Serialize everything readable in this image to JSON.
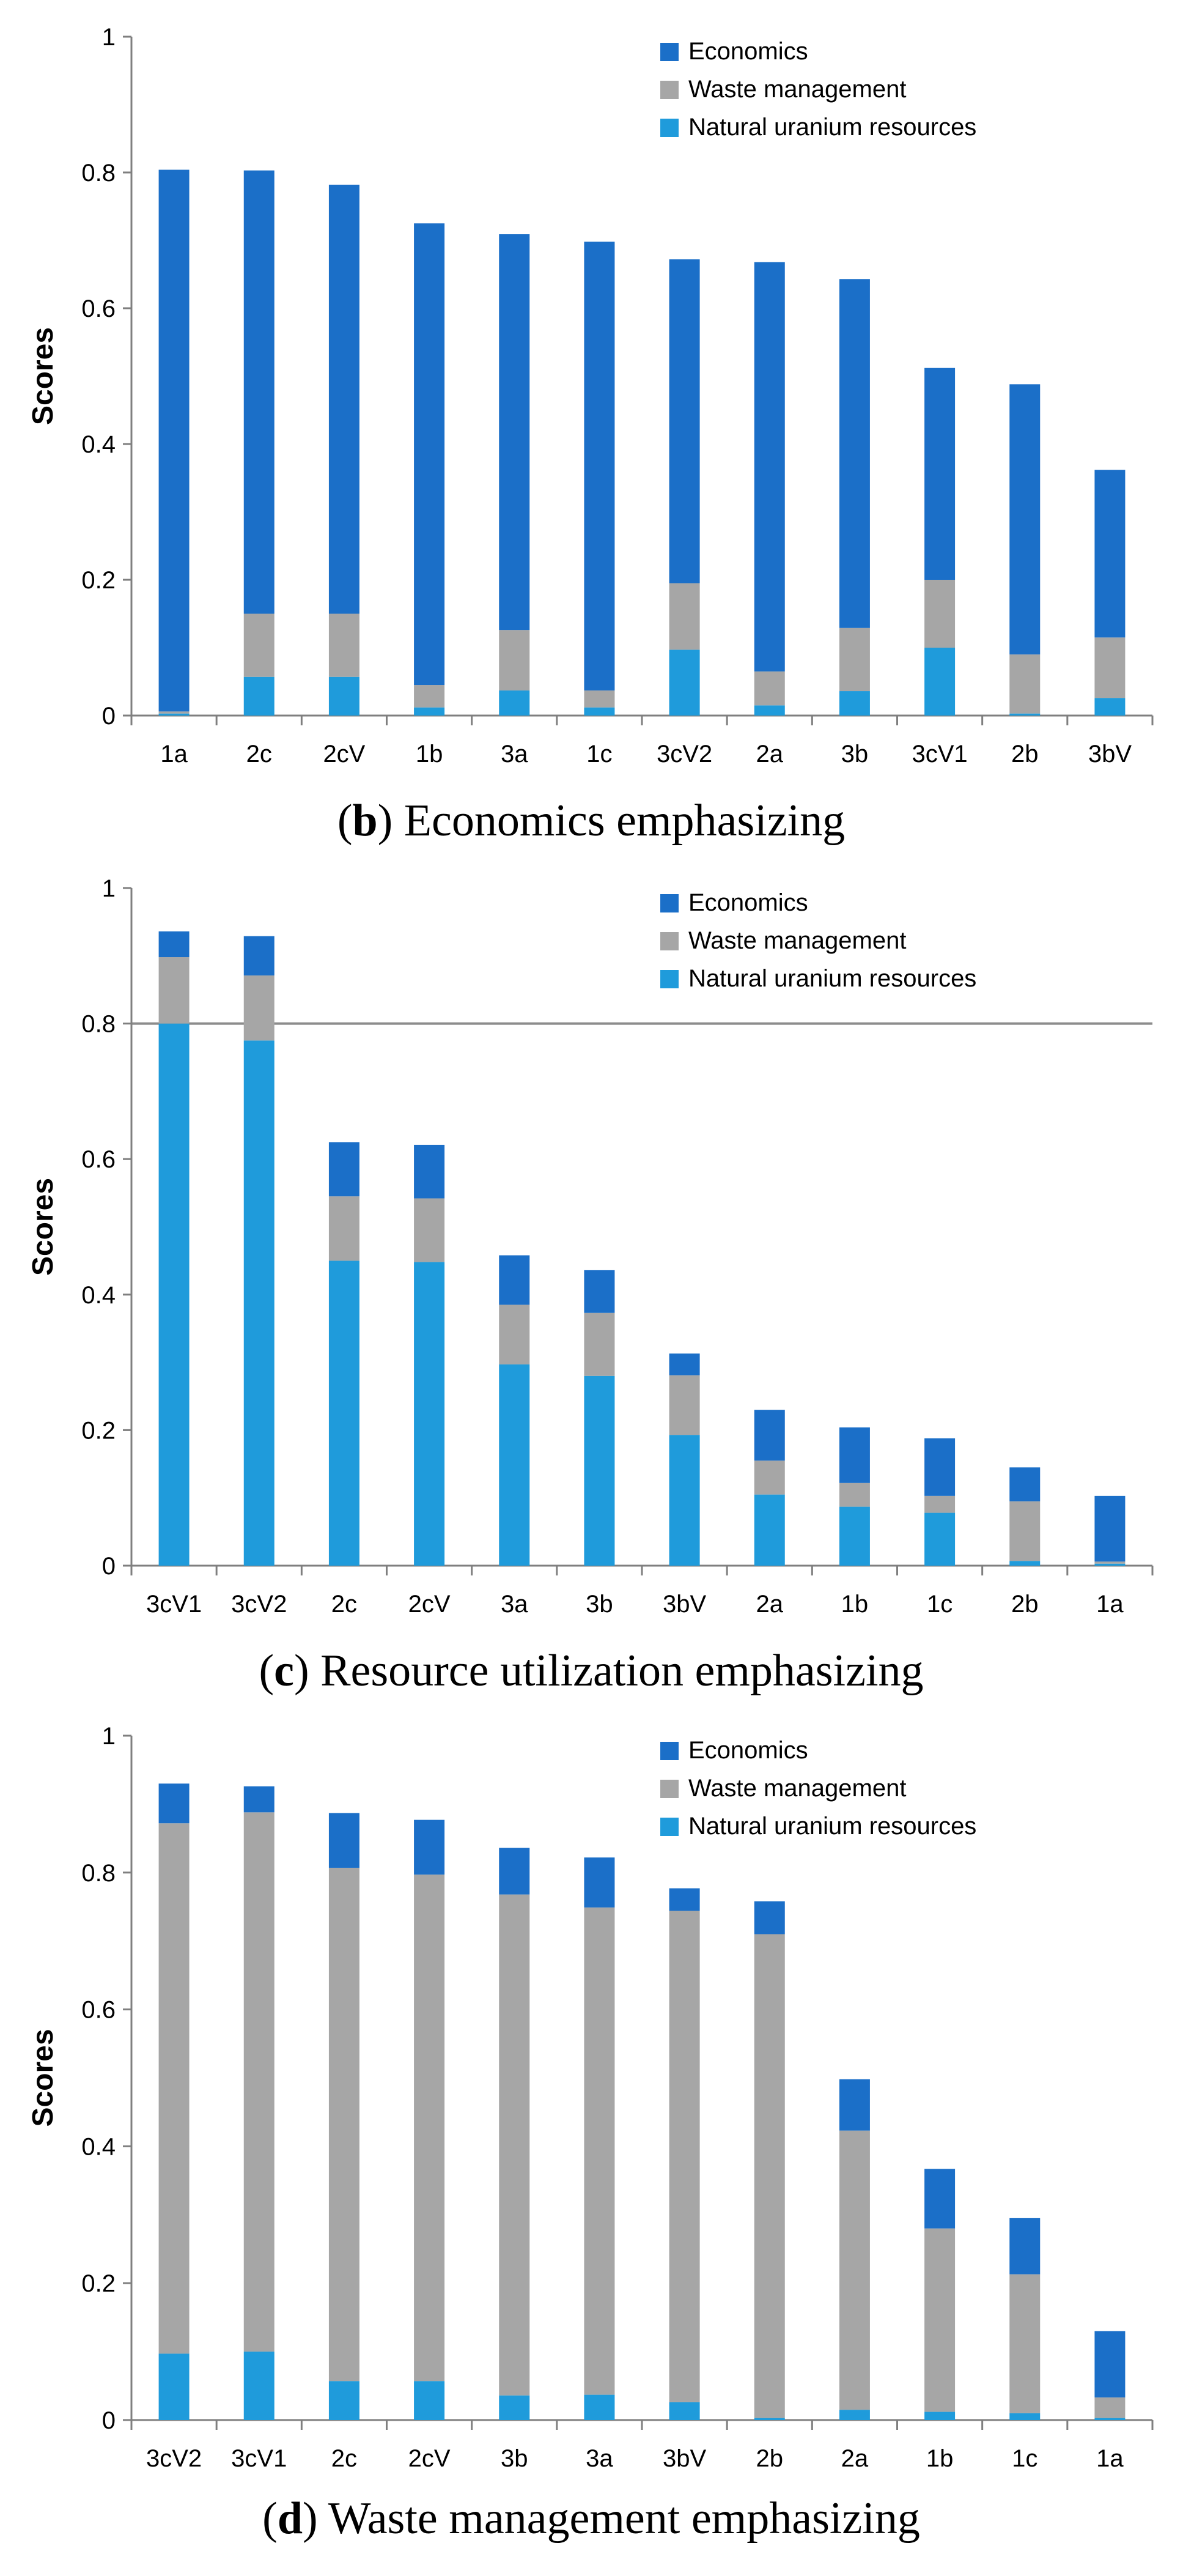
{
  "chart_data": [
    {
      "type": "bar",
      "stacked": true,
      "caption_letter": "b",
      "caption_text": " Economics emphasizing",
      "ylabel": "Scores",
      "ylim": [
        0,
        1
      ],
      "ytick_labels": [
        "0",
        "0.2",
        "0.4",
        "0.6",
        "0.8",
        "1"
      ],
      "gridlines": [],
      "legend_labels": [
        "Economics",
        "Waste management",
        "Natural uranium resources"
      ],
      "categories": [
        "1a",
        "2c",
        "2cV",
        "1b",
        "3a",
        "1c",
        "3cV2",
        "2a",
        "3b",
        "3cV1",
        "2b",
        "3bV"
      ],
      "series": [
        {
          "name": "Natural uranium resources",
          "values": [
            0.003,
            0.057,
            0.057,
            0.012,
            0.037,
            0.012,
            0.097,
            0.015,
            0.036,
            0.1,
            0.003,
            0.026
          ]
        },
        {
          "name": "Waste management",
          "values": [
            0.003,
            0.093,
            0.093,
            0.033,
            0.089,
            0.025,
            0.098,
            0.05,
            0.093,
            0.1,
            0.087,
            0.089
          ]
        },
        {
          "name": "Economics",
          "values": [
            0.798,
            0.653,
            0.632,
            0.68,
            0.583,
            0.661,
            0.477,
            0.603,
            0.514,
            0.312,
            0.398,
            0.247
          ]
        }
      ]
    },
    {
      "type": "bar",
      "stacked": true,
      "caption_letter": "c",
      "caption_text": " Resource utilization emphasizing",
      "ylabel": "Scores",
      "ylim": [
        0,
        1
      ],
      "ytick_labels": [
        "0",
        "0.2",
        "0.4",
        "0.6",
        "0.8",
        "1"
      ],
      "gridlines": [
        0.8
      ],
      "legend_labels": [
        "Economics",
        "Waste management",
        "Natural uranium resources"
      ],
      "categories": [
        "3cV1",
        "3cV2",
        "2c",
        "2cV",
        "3a",
        "3b",
        "3bV",
        "2a",
        "1b",
        "1c",
        "2b",
        "1a"
      ],
      "series": [
        {
          "name": "Natural uranium resources",
          "values": [
            0.8,
            0.775,
            0.45,
            0.448,
            0.297,
            0.28,
            0.193,
            0.105,
            0.087,
            0.078,
            0.007,
            0.003
          ]
        },
        {
          "name": "Waste management",
          "values": [
            0.098,
            0.096,
            0.095,
            0.094,
            0.088,
            0.093,
            0.088,
            0.05,
            0.035,
            0.025,
            0.088,
            0.003
          ]
        },
        {
          "name": "Economics",
          "values": [
            0.038,
            0.058,
            0.08,
            0.079,
            0.073,
            0.063,
            0.032,
            0.075,
            0.082,
            0.085,
            0.05,
            0.097
          ]
        }
      ]
    },
    {
      "type": "bar",
      "stacked": true,
      "caption_letter": "d",
      "caption_text": " Waste management emphasizing",
      "ylabel": "Scores",
      "ylim": [
        0,
        1
      ],
      "ytick_labels": [
        "0",
        "0.2",
        "0.4",
        "0.6",
        "0.8",
        "1"
      ],
      "gridlines": [],
      "legend_labels": [
        "Economics",
        "Waste management",
        "Natural uranium resources"
      ],
      "categories": [
        "3cV2",
        "3cV1",
        "2c",
        "2cV",
        "3b",
        "3a",
        "3bV",
        "2b",
        "2a",
        "1b",
        "1c",
        "1a"
      ],
      "series": [
        {
          "name": "Natural uranium resources",
          "values": [
            0.097,
            0.1,
            0.057,
            0.057,
            0.036,
            0.037,
            0.026,
            0.003,
            0.015,
            0.012,
            0.01,
            0.003
          ]
        },
        {
          "name": "Waste management",
          "values": [
            0.775,
            0.788,
            0.75,
            0.74,
            0.732,
            0.712,
            0.718,
            0.707,
            0.408,
            0.268,
            0.203,
            0.03
          ]
        },
        {
          "name": "Economics",
          "values": [
            0.058,
            0.038,
            0.08,
            0.08,
            0.068,
            0.073,
            0.033,
            0.048,
            0.075,
            0.087,
            0.082,
            0.097
          ]
        }
      ]
    }
  ],
  "colors": {
    "economics": "#1b6fc8",
    "waste_management": "#a6a6a6",
    "natural_uranium": "#1f9bdb",
    "axis": "#7f7f7f",
    "gridline": "#8c8c8c",
    "text": "#000000"
  }
}
